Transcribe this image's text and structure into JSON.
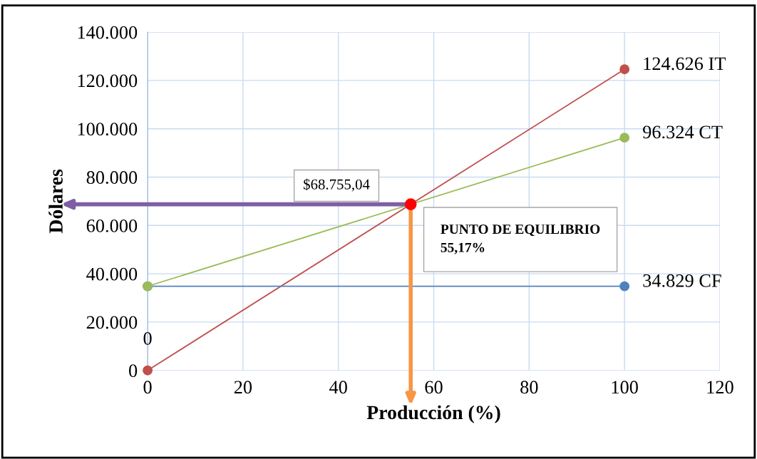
{
  "chart_data": {
    "type": "line",
    "xlabel": "Producción (%)",
    "ylabel": "Dólares",
    "x": [
      0,
      100
    ],
    "series": [
      {
        "color": "#c0504d",
        "values": [
          0,
          124626
        ],
        "value_labels": [
          "0",
          "124.626 IT"
        ]
      },
      {
        "color": "#9bbb59",
        "values": [
          34829,
          96324
        ],
        "value_labels": [
          null,
          "96.324 CT"
        ]
      },
      {
        "color": "#4f81bd",
        "values": [
          34829,
          34829
        ],
        "value_labels": [
          null,
          "34.829 CF"
        ]
      },
      {
        "type": "scatter",
        "color": "#ff0000",
        "x": [
          55.17
        ],
        "values": [
          68755.04
        ]
      }
    ],
    "annotations": [
      {
        "text": "$68.755,04",
        "x": 55.17,
        "y": 68755.04
      },
      {
        "text": "PUNTO DE EQUILIBRIO\n55,17%",
        "x": 55.17,
        "y": 68755.04
      }
    ],
    "xlim": [
      0,
      120
    ],
    "xticks": [
      0,
      20,
      40,
      60,
      80,
      100,
      120
    ],
    "ylim": [
      0,
      140000
    ],
    "yticks": [
      {
        "value": 0,
        "label": "0"
      },
      {
        "value": 20000,
        "label": "20.000"
      },
      {
        "value": 40000,
        "label": "40.000"
      },
      {
        "value": 60000,
        "label": "60.000"
      },
      {
        "value": 80000,
        "label": "80.000"
      },
      {
        "value": 100000,
        "label": "100.000"
      },
      {
        "value": 120000,
        "label": "120.000"
      },
      {
        "value": 140000,
        "label": "140.000"
      }
    ],
    "grid": true,
    "marker": "circle",
    "line_style": "solid",
    "legend": false
  }
}
